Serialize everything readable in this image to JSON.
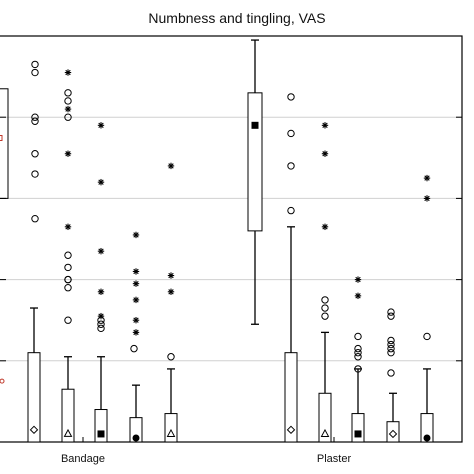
{
  "chart_data": {
    "type": "box",
    "title": "Numbness and tingling, VAS",
    "xlabel": "",
    "ylabel": "",
    "groups": [
      "Bandage",
      "Plaster"
    ],
    "ylim": [
      0,
      100
    ],
    "grid": "horizontal",
    "yticks": [
      20,
      40,
      60,
      80
    ],
    "boxes": [
      {
        "group": "Bandage",
        "box": {
          "q1": 0,
          "q3": 22,
          "median": 22,
          "whisker_low": 0,
          "whisker_high": 33
        },
        "mean_marker": "diamond",
        "mean": 3,
        "outliers_circle": [
          93,
          91,
          80,
          79,
          71,
          66,
          55
        ],
        "outliers_star": []
      },
      {
        "group": "Bandage",
        "box": {
          "q1": 0,
          "q3": 13,
          "median": 0,
          "whisker_low": 0,
          "whisker_high": 21
        },
        "mean_marker": "triangle",
        "mean": 2,
        "outliers_circle": [
          86,
          80,
          84,
          46,
          43,
          40,
          40,
          38,
          30
        ],
        "outliers_star": [
          91,
          82,
          71,
          53
        ]
      },
      {
        "group": "Bandage",
        "box": {
          "q1": 0,
          "q3": 8,
          "median": 0,
          "whisker_low": 0,
          "whisker_high": 21
        },
        "mean_marker": "square",
        "mean": 1,
        "outliers_circle": [
          30,
          29,
          28
        ],
        "outliers_star": [
          78,
          64,
          47,
          37,
          31
        ]
      },
      {
        "group": "Bandage",
        "box": {
          "q1": 0,
          "q3": 6,
          "median": 0,
          "whisker_low": 0,
          "whisker_high": 14
        },
        "mean_marker": "circle",
        "mean": 0,
        "outliers_circle": [
          23
        ],
        "outliers_star": [
          51,
          42,
          39,
          35,
          30,
          27
        ]
      },
      {
        "group": "Bandage",
        "box": {
          "q1": 0,
          "q3": 7,
          "median": 0,
          "whisker_low": 0,
          "whisker_high": 18
        },
        "mean_marker": "triangle",
        "mean": 1,
        "outliers_circle": [
          21
        ],
        "outliers_star": [
          68,
          41,
          37
        ]
      },
      {
        "group": "Plaster",
        "box": {
          "q1": 52,
          "q3": 86,
          "median": 79,
          "whisker_low": 29,
          "whisker_high": 99
        },
        "mean_marker": "square",
        "mean": 78,
        "outliers_circle": [],
        "outliers_star": []
      },
      {
        "group": "Plaster",
        "box": {
          "q1": 0,
          "q3": 22,
          "median": 22,
          "whisker_low": 0,
          "whisker_high": 53
        },
        "mean_marker": "diamond",
        "mean": 3,
        "outliers_circle": [
          85,
          76,
          68,
          57
        ],
        "outliers_star": []
      },
      {
        "group": "Plaster",
        "box": {
          "q1": 0,
          "q3": 12,
          "median": 0,
          "whisker_low": 0,
          "whisker_high": 27
        },
        "mean_marker": "triangle",
        "mean": 1,
        "outliers_circle": [
          35,
          33,
          31
        ],
        "outliers_star": [
          78,
          71,
          53
        ]
      },
      {
        "group": "Plaster",
        "box": {
          "q1": 0,
          "q3": 7,
          "median": 0,
          "whisker_low": 0,
          "whisker_high": 18
        },
        "mean_marker": "square",
        "mean": 1,
        "outliers_circle": [
          26,
          23,
          22,
          21,
          18
        ],
        "outliers_star": [
          40,
          36
        ]
      },
      {
        "group": "Plaster",
        "box": {
          "q1": 0,
          "q3": 5,
          "median": 0,
          "whisker_low": 0,
          "whisker_high": 12
        },
        "mean_marker": "diamond",
        "mean": 1,
        "outliers_circle": [
          32,
          31,
          25,
          24,
          23,
          22,
          17
        ],
        "outliers_star": []
      },
      {
        "group": "Plaster",
        "box": {
          "q1": 0,
          "q3": 7,
          "median": 0,
          "whisker_low": 0,
          "whisker_high": 18
        },
        "mean_marker": "circle",
        "mean": 0,
        "outliers_circle": [
          26
        ],
        "outliers_star": [
          65,
          60
        ]
      }
    ],
    "partial_left_box": {
      "q1": 60,
      "q3": 87,
      "median": 76,
      "mean": 75
    },
    "partial_left_marker_value": 15
  },
  "colors": {
    "axis": "#000000",
    "grid": "#d0d0d0",
    "mean_red": "#c0392b"
  }
}
